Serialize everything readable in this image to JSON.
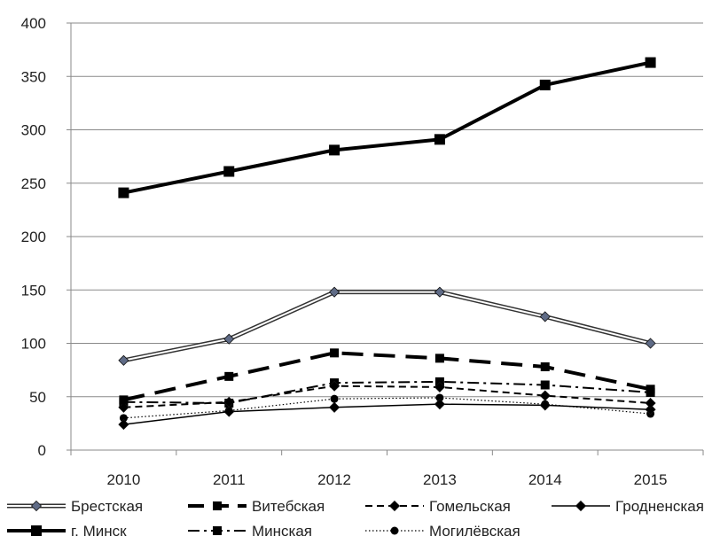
{
  "chart_data": {
    "type": "line",
    "title": "",
    "xlabel": "",
    "ylabel": "",
    "categories": [
      "2010",
      "2011",
      "2012",
      "2013",
      "2014",
      "2015"
    ],
    "ylim": [
      0,
      400
    ],
    "yticks": [
      "0",
      "50",
      "100",
      "150",
      "200",
      "250",
      "300",
      "350",
      "400"
    ],
    "grid": "horizontal",
    "legend_position": "bottom",
    "series": [
      {
        "name": "Брестская",
        "values": [
          84,
          104,
          148,
          148,
          125,
          100
        ],
        "style": "double",
        "marker": "diamond",
        "color": "#333333"
      },
      {
        "name": "Витебская",
        "values": [
          47,
          69,
          91,
          86,
          78,
          57
        ],
        "style": "longdash",
        "marker": "square",
        "color": "#000000"
      },
      {
        "name": "Гомельская",
        "values": [
          40,
          45,
          60,
          59,
          51,
          44
        ],
        "style": "dash",
        "marker": "diamond",
        "color": "#000000"
      },
      {
        "name": "Гродненская",
        "values": [
          24,
          36,
          40,
          43,
          42,
          38
        ],
        "style": "solid",
        "marker": "diamond",
        "color": "#000000"
      },
      {
        "name": "г. Минск",
        "values": [
          241,
          261,
          281,
          291,
          342,
          363
        ],
        "style": "thick",
        "marker": "square",
        "color": "#000000"
      },
      {
        "name": "Минская",
        "values": [
          45,
          44,
          63,
          64,
          61,
          54
        ],
        "style": "dashdot",
        "marker": "square",
        "color": "#000000"
      },
      {
        "name": "Могилёвская",
        "values": [
          30,
          37,
          48,
          49,
          43,
          34
        ],
        "style": "dotted",
        "marker": "circle",
        "color": "#000000"
      }
    ]
  }
}
